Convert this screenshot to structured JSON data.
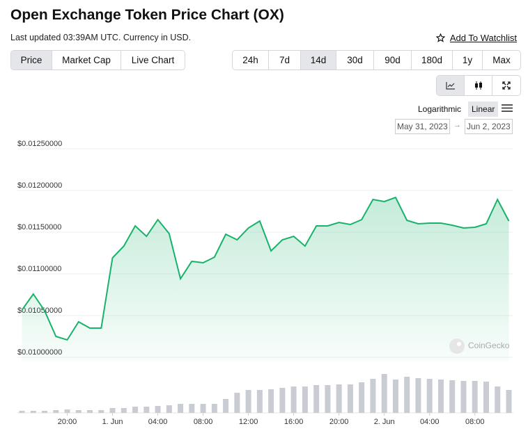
{
  "header": {
    "title": "Open Exchange Token Price Chart (OX)",
    "updated": "Last updated 03:39AM UTC. Currency in USD.",
    "watchlist": "Add To Watchlist"
  },
  "tabs": [
    "Price",
    "Market Cap",
    "Live Chart"
  ],
  "ranges": [
    "24h",
    "7d",
    "14d",
    "30d",
    "90d",
    "180d",
    "1y",
    "Max"
  ],
  "scale_options": [
    "Logarithmic",
    "Linear"
  ],
  "date_range": [
    "May 31, 2023",
    "Jun 2, 2023"
  ],
  "watermark": "CoinGecko",
  "chart_data": {
    "type": "line",
    "color": "#18b26b",
    "volume_color": "#c9ccd3",
    "x": [
      16,
      17,
      18,
      19,
      20,
      21,
      22,
      23,
      24,
      25,
      26,
      27,
      28,
      29,
      30,
      31,
      32,
      33,
      34,
      35,
      36,
      37,
      38,
      39,
      40,
      41,
      42,
      43,
      44,
      45,
      46,
      47,
      48,
      49,
      50,
      51,
      52,
      53,
      54,
      55,
      56,
      57,
      58,
      59
    ],
    "values": [
      0.010567,
      0.010758,
      0.010558,
      0.01025,
      0.010208,
      0.010425,
      0.01035,
      0.01035,
      0.011192,
      0.011333,
      0.011575,
      0.01145,
      0.01165,
      0.011483,
      0.010942,
      0.01115,
      0.011133,
      0.0112,
      0.011475,
      0.011408,
      0.01155,
      0.011633,
      0.011275,
      0.011408,
      0.01145,
      0.011333,
      0.011575,
      0.011575,
      0.011617,
      0.011592,
      0.01165,
      0.011892,
      0.011867,
      0.011917,
      0.011642,
      0.0116,
      0.011608,
      0.011608,
      0.011583,
      0.01155,
      0.011558,
      0.0116,
      0.011892,
      0.011633
    ],
    "volume": [
      3,
      3,
      3,
      4,
      5,
      4,
      4,
      4,
      7,
      7,
      9,
      9,
      10,
      11,
      13,
      13,
      13,
      13,
      20,
      29,
      33,
      33,
      34,
      36,
      38,
      38,
      40,
      40,
      41,
      41,
      44,
      49,
      56,
      48,
      52,
      50,
      49,
      48,
      47,
      46,
      46,
      45,
      38,
      33
    ],
    "xlim": [
      15.6,
      59.4
    ],
    "xticks": [
      {
        "value": 20,
        "label": "20:00"
      },
      {
        "value": 24,
        "label": "1. Jun"
      },
      {
        "value": 28,
        "label": "04:00"
      },
      {
        "value": 32,
        "label": "08:00"
      },
      {
        "value": 36,
        "label": "12:00"
      },
      {
        "value": 40,
        "label": "16:00"
      },
      {
        "value": 44,
        "label": "20:00"
      },
      {
        "value": 48,
        "label": "2. Jun"
      },
      {
        "value": 52,
        "label": "04:00"
      },
      {
        "value": 56,
        "label": "08:00"
      }
    ],
    "ylim": [
      0.00995,
      0.012575
    ],
    "yticks": [
      {
        "value": 0.01,
        "label": "$0.01000000"
      },
      {
        "value": 0.0105,
        "label": "$0.01050000"
      },
      {
        "value": 0.011,
        "label": "$0.01100000"
      },
      {
        "value": 0.0115,
        "label": "$0.01150000"
      },
      {
        "value": 0.012,
        "label": "$0.01200000"
      },
      {
        "value": 0.0125,
        "label": "$0.01250000"
      }
    ],
    "grid": true
  }
}
